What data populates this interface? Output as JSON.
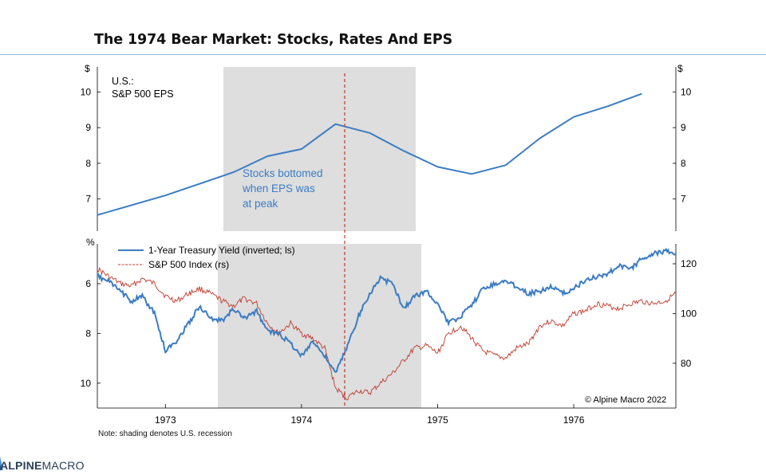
{
  "title": "The 1974 Bear Market: Stocks, Rates And EPS",
  "footnote": "Note: shading denotes U.S. recession",
  "logo": {
    "part1": "ALPINE",
    "part2": "MACRO"
  },
  "copyright": "© Alpine Macro 2022",
  "colors": {
    "blue": "#3b7cc4",
    "red": "#c0392b",
    "shade": "#dedede",
    "peak": "#c0392b"
  },
  "chart_data": [
    {
      "type": "line",
      "panel": "top",
      "panel_label_line1": "U.S.:",
      "panel_label_line2": "S&P 500 EPS",
      "ylabel_left": "$",
      "ylabel_right": "$",
      "ylim": [
        6.1,
        10.7
      ],
      "yticks": [
        "7",
        "8",
        "9",
        "10"
      ],
      "annotation_lines": [
        "Stocks bottomed",
        "when EPS was",
        "at peak"
      ],
      "series": [
        {
          "name": "S&P 500 EPS",
          "x": [
            1972.5,
            1973.0,
            1973.5,
            1973.75,
            1974.0,
            1974.25,
            1974.5,
            1974.75,
            1975.0,
            1975.25,
            1975.5,
            1975.75,
            1976.0,
            1976.25,
            1976.5
          ],
          "values": [
            6.55,
            7.1,
            7.75,
            8.2,
            8.4,
            9.1,
            8.85,
            8.35,
            7.9,
            7.7,
            7.95,
            8.7,
            9.3,
            9.6,
            9.95
          ]
        }
      ]
    },
    {
      "type": "line",
      "panel": "bottom",
      "ylabel_left": "%",
      "ylim_left_inverted": [
        11,
        4.4
      ],
      "yticks_left": [
        "6",
        "8",
        "10"
      ],
      "ylim_right": [
        62,
        128
      ],
      "yticks_right": [
        "80",
        "100",
        "120"
      ],
      "xticks": [
        "1973",
        "1974",
        "1975",
        "1976"
      ],
      "xlim": [
        1972.5,
        1976.75
      ],
      "series": [
        {
          "name": "1-Year Treasury Yield (inverted; ls)",
          "axis": "left",
          "x": [
            1972.5,
            1972.58,
            1972.67,
            1972.75,
            1972.83,
            1972.92,
            1973.0,
            1973.08,
            1973.17,
            1973.25,
            1973.33,
            1973.42,
            1973.5,
            1973.58,
            1973.67,
            1973.75,
            1973.83,
            1973.92,
            1974.0,
            1974.08,
            1974.17,
            1974.25,
            1974.33,
            1974.42,
            1974.5,
            1974.58,
            1974.67,
            1974.75,
            1974.83,
            1974.92,
            1975.0,
            1975.08,
            1975.17,
            1975.25,
            1975.33,
            1975.42,
            1975.5,
            1975.58,
            1975.67,
            1975.75,
            1975.83,
            1975.92,
            1976.0,
            1976.08,
            1976.17,
            1976.25,
            1976.33,
            1976.42,
            1976.5,
            1976.58,
            1976.67,
            1976.75
          ],
          "values": [
            5.7,
            5.9,
            6.3,
            6.7,
            6.5,
            7.2,
            8.7,
            8.3,
            7.6,
            6.9,
            7.4,
            7.5,
            7.0,
            7.4,
            7.1,
            7.9,
            8.0,
            8.4,
            8.9,
            8.3,
            8.9,
            9.6,
            8.6,
            7.3,
            6.4,
            5.8,
            6.0,
            7.0,
            6.5,
            6.3,
            6.8,
            7.6,
            7.3,
            6.9,
            6.2,
            6.0,
            5.9,
            6.1,
            6.4,
            6.3,
            6.1,
            6.4,
            6.2,
            5.9,
            5.7,
            5.6,
            5.3,
            5.4,
            5.0,
            4.8,
            4.7,
            4.8
          ]
        },
        {
          "name": "S&P 500 Index (rs)",
          "axis": "right",
          "x": [
            1972.5,
            1972.58,
            1972.67,
            1972.75,
            1972.83,
            1972.92,
            1973.0,
            1973.08,
            1973.17,
            1973.25,
            1973.33,
            1973.42,
            1973.5,
            1973.58,
            1973.67,
            1973.75,
            1973.83,
            1973.92,
            1974.0,
            1974.08,
            1974.17,
            1974.25,
            1974.33,
            1974.42,
            1974.5,
            1974.58,
            1974.67,
            1974.75,
            1974.83,
            1974.92,
            1975.0,
            1975.08,
            1975.17,
            1975.25,
            1975.33,
            1975.42,
            1975.5,
            1975.58,
            1975.67,
            1975.75,
            1975.83,
            1975.92,
            1976.0,
            1976.08,
            1976.17,
            1976.25,
            1976.33,
            1976.42,
            1976.5,
            1976.58,
            1976.67,
            1976.75
          ],
          "values": [
            118,
            115,
            112,
            111,
            114,
            112,
            107,
            105,
            108,
            110,
            108,
            105,
            103,
            106,
            104,
            96,
            92,
            96,
            92,
            90,
            86,
            70,
            66,
            69,
            68,
            72,
            76,
            81,
            86,
            87,
            84,
            92,
            95,
            90,
            85,
            83,
            82,
            86,
            88,
            95,
            97,
            95,
            100,
            101,
            104,
            103,
            102,
            104,
            105,
            104,
            105,
            108
          ]
        }
      ]
    }
  ]
}
